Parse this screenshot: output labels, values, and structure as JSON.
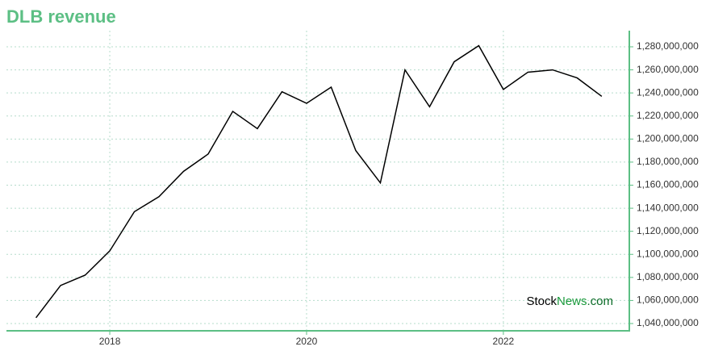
{
  "chart_data": {
    "type": "line",
    "title": "DLB revenue",
    "x": [
      2017.25,
      2017.5,
      2017.75,
      2018.0,
      2018.25,
      2018.5,
      2018.75,
      2019.0,
      2019.25,
      2019.5,
      2019.75,
      2020.0,
      2020.25,
      2020.5,
      2020.75,
      2021.0,
      2021.25,
      2021.5,
      2021.75,
      2022.0,
      2022.25,
      2022.5,
      2022.75,
      2023.0
    ],
    "series": [
      {
        "color": "#000000",
        "values": [
          1045000000,
          1073000000,
          1082000000,
          1103000000,
          1137000000,
          1150000000,
          1172000000,
          1187000000,
          1224000000,
          1209000000,
          1241000000,
          1231000000,
          1245000000,
          1190000000,
          1162000000,
          1260000000,
          1228000000,
          1267000000,
          1281000000,
          1243000000,
          1258000000,
          1260000000,
          1253000000,
          1237000000
        ]
      }
    ],
    "xlim": [
      2016.95,
      2023.28
    ],
    "xticks": [
      2018,
      2020,
      2022
    ],
    "ylim": [
      1033700000,
      1294000000
    ],
    "yticks": [
      {
        "value": 1040000000,
        "label": "1,040,000,000"
      },
      {
        "value": 1060000000,
        "label": "1,060,000,000"
      },
      {
        "value": 1080000000,
        "label": "1,080,000,000"
      },
      {
        "value": 1100000000,
        "label": "1,100,000,000"
      },
      {
        "value": 1120000000,
        "label": "1,120,000,000"
      },
      {
        "value": 1140000000,
        "label": "1,140,000,000"
      },
      {
        "value": 1160000000,
        "label": "1,160,000,000"
      },
      {
        "value": 1180000000,
        "label": "1,180,000,000"
      },
      {
        "value": 1200000000,
        "label": "1,200,000,000"
      },
      {
        "value": 1220000000,
        "label": "1,220,000,000"
      },
      {
        "value": 1240000000,
        "label": "1,240,000,000"
      },
      {
        "value": 1260000000,
        "label": "1,260,000,000"
      },
      {
        "value": 1280000000,
        "label": "1,280,000,000"
      }
    ],
    "grid": true,
    "watermark": [
      "Stock",
      "News",
      ".com"
    ]
  }
}
